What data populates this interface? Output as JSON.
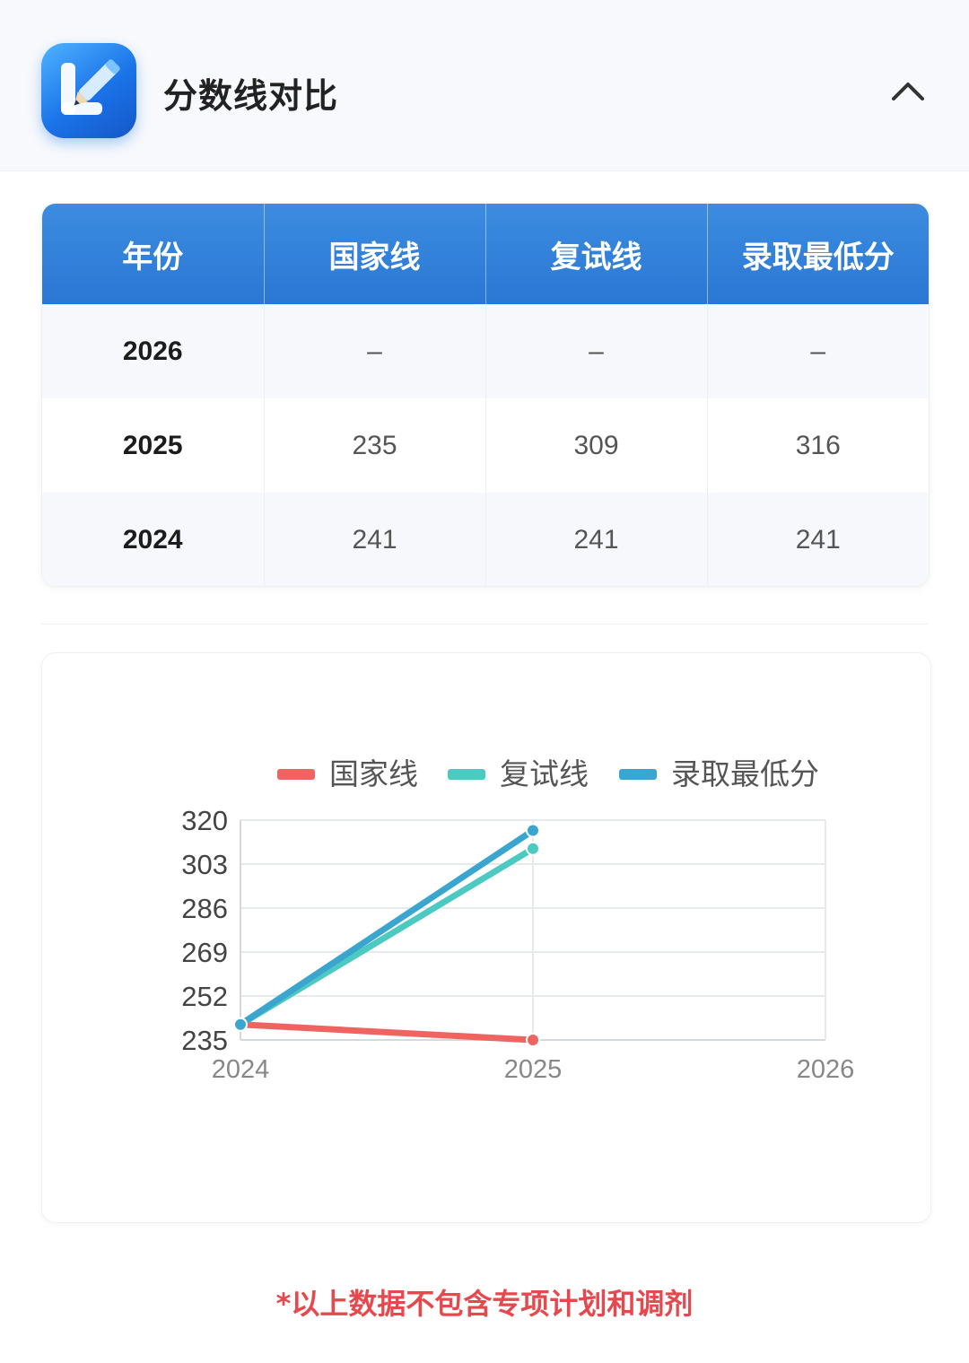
{
  "header": {
    "title": "分数线对比",
    "icon": "pencil-edit-icon",
    "collapse_icon": "chevron-up-icon"
  },
  "table": {
    "columns": [
      "年份",
      "国家线",
      "复试线",
      "录取最低分"
    ],
    "rows": [
      [
        "2026",
        "–",
        "–",
        "–"
      ],
      [
        "2025",
        "235",
        "309",
        "316"
      ],
      [
        "2024",
        "241",
        "241",
        "241"
      ]
    ]
  },
  "chart_data": {
    "type": "line",
    "categories": [
      "2024",
      "2025",
      "2026"
    ],
    "series": [
      {
        "name": "国家线",
        "color": "#ef6461",
        "values": [
          241,
          235,
          null
        ]
      },
      {
        "name": "复试线",
        "color": "#4cc9c0",
        "values": [
          241,
          309,
          null
        ]
      },
      {
        "name": "录取最低分",
        "color": "#3aa6d0",
        "values": [
          241,
          316,
          null
        ]
      }
    ],
    "yticks": [
      235,
      252,
      269,
      286,
      303,
      320
    ],
    "ylim": [
      235,
      320
    ],
    "grid": true,
    "legend": "top"
  },
  "footnote": "*以上数据不包含专项计划和调剂"
}
